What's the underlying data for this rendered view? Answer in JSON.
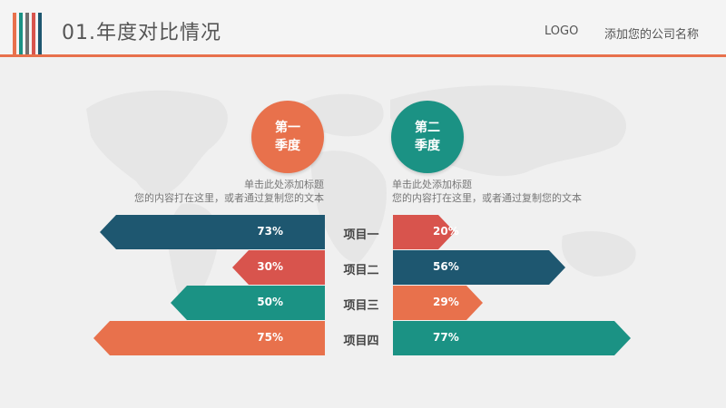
{
  "header": {
    "title": "01.年度对比情况",
    "logo": "LOGO",
    "company": "添加您的公司名称"
  },
  "colors": {
    "orange": "#e8714c",
    "navy": "#1e5770",
    "red": "#d8544d",
    "teal": "#1b9284",
    "stripe_gray": "#6f6f6f"
  },
  "left_group": {
    "circle_label": [
      "第一",
      "季度"
    ],
    "desc_title": "单击此处添加标题",
    "desc_body": "您的内容打在这里，或者通过复制您的文本"
  },
  "right_group": {
    "circle_label": [
      "第二",
      "季度"
    ],
    "desc_title": "单击此处添加标题",
    "desc_body": "您的内容打在这里，或者通过复制您的文本"
  },
  "chart_data": {
    "type": "bar",
    "categories": [
      "项目一",
      "项目二",
      "项目三",
      "项目四"
    ],
    "series": [
      {
        "values": [
          73,
          30,
          50,
          75
        ],
        "labels": [
          "73%",
          "30%",
          "50%",
          "75%"
        ],
        "colors": [
          "#1e5770",
          "#d8544d",
          "#1b9284",
          "#e8714c"
        ]
      },
      {
        "values": [
          20,
          56,
          29,
          77
        ],
        "labels": [
          "20%",
          "56%",
          "29%",
          "77%"
        ],
        "colors": [
          "#d8544d",
          "#1e5770",
          "#e8714c",
          "#1b9284"
        ]
      }
    ]
  }
}
